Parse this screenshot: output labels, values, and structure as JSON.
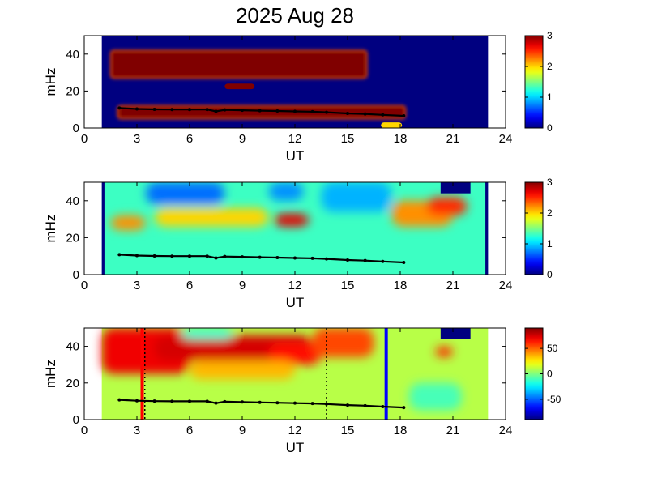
{
  "figure": {
    "title": "2025 Aug 28"
  },
  "chart_data": [
    {
      "type": "heatmap",
      "panel": "top",
      "xlabel": "UT",
      "ylabel": "mHz",
      "xlim": [
        0,
        24
      ],
      "ylim": [
        0,
        50
      ],
      "xticks": [
        0,
        3,
        6,
        9,
        12,
        15,
        18,
        21,
        24
      ],
      "yticks": [
        0,
        20,
        40
      ],
      "data_x_range": [
        1,
        23
      ],
      "colorbar": {
        "range": [
          0,
          3
        ],
        "ticks": [
          0,
          1,
          2,
          3
        ]
      },
      "background_value": 0,
      "regions": [
        {
          "label": "band",
          "ut": [
            1.5,
            16.1
          ],
          "mhz": [
            27,
            42
          ],
          "value": 3
        },
        {
          "label": "patch",
          "ut": [
            8,
            9.7
          ],
          "mhz": [
            21,
            24
          ],
          "value": 3
        },
        {
          "label": "band",
          "ut": [
            1.9,
            18.3
          ],
          "mhz": [
            5,
            12
          ],
          "value": 3
        },
        {
          "label": "patch",
          "ut": [
            16.9,
            18.1
          ],
          "mhz": [
            0,
            3
          ],
          "value": 2
        }
      ],
      "trace": {
        "color": "#000000",
        "ut": [
          2.0,
          3.0,
          4.0,
          5.0,
          6.0,
          7.0,
          7.5,
          8.0,
          9.0,
          10.0,
          11.0,
          12.0,
          13.0,
          13.8,
          15.0,
          16.0,
          17.0,
          18.2
        ],
        "mhz": [
          10.8,
          10.3,
          10.1,
          10.0,
          10.0,
          10.0,
          9.0,
          9.8,
          9.6,
          9.4,
          9.2,
          9.0,
          8.8,
          8.5,
          7.9,
          7.6,
          7.1,
          6.6
        ]
      }
    },
    {
      "type": "heatmap",
      "panel": "middle",
      "xlabel": "UT",
      "ylabel": "mHz",
      "xlim": [
        0,
        24
      ],
      "ylim": [
        0,
        50
      ],
      "xticks": [
        0,
        3,
        6,
        9,
        12,
        15,
        18,
        21,
        24
      ],
      "yticks": [
        0,
        20,
        40
      ],
      "data_x_range": [
        1,
        23
      ],
      "colorbar": {
        "range": [
          0,
          3
        ],
        "ticks": [
          0,
          1,
          2,
          3
        ]
      },
      "background_value": 1.3,
      "regions": [
        {
          "label": "low",
          "ut": [
            3.5,
            8.0
          ],
          "mhz": [
            38,
            50
          ],
          "value": 0.7
        },
        {
          "label": "low",
          "ut": [
            10.5,
            12.5
          ],
          "mhz": [
            40,
            50
          ],
          "value": 0.8
        },
        {
          "label": "low",
          "ut": [
            13.5,
            17.5
          ],
          "mhz": [
            34,
            50
          ],
          "value": 0.9
        },
        {
          "label": "high",
          "ut": [
            1.5,
            3.5
          ],
          "mhz": [
            24,
            32
          ],
          "value": 2.2
        },
        {
          "label": "high",
          "ut": [
            4.0,
            10.5
          ],
          "mhz": [
            26,
            36
          ],
          "value": 2.0
        },
        {
          "label": "high",
          "ut": [
            10.8,
            12.8
          ],
          "mhz": [
            26,
            33
          ],
          "value": 2.7
        },
        {
          "label": "high",
          "ut": [
            17.5,
            21.0
          ],
          "mhz": [
            26,
            40
          ],
          "value": 2.2
        },
        {
          "label": "high",
          "ut": [
            19.5,
            21.8
          ],
          "mhz": [
            32,
            42
          ],
          "value": 2.5
        },
        {
          "label": "patch",
          "ut": [
            20.3,
            22.0
          ],
          "mhz": [
            44,
            50
          ],
          "value": 0
        },
        {
          "label": "edge",
          "ut": [
            1.0,
            1.15
          ],
          "mhz": [
            0,
            50
          ],
          "value": 0
        },
        {
          "label": "edge",
          "ut": [
            22.85,
            23.0
          ],
          "mhz": [
            0,
            50
          ],
          "value": 0
        }
      ],
      "trace": {
        "color": "#000000",
        "ut": [
          2.0,
          3.0,
          4.0,
          5.0,
          6.0,
          7.0,
          7.5,
          8.0,
          9.0,
          10.0,
          11.0,
          12.0,
          13.0,
          13.8,
          15.0,
          16.0,
          17.0,
          18.2
        ],
        "mhz": [
          10.8,
          10.3,
          10.1,
          10.0,
          10.0,
          10.0,
          9.0,
          9.8,
          9.6,
          9.4,
          9.2,
          9.0,
          8.8,
          8.5,
          7.9,
          7.6,
          7.1,
          6.6
        ]
      }
    },
    {
      "type": "heatmap",
      "panel": "bottom",
      "xlabel": "UT",
      "ylabel": "mHz",
      "xlim": [
        0,
        24
      ],
      "ylim": [
        0,
        50
      ],
      "xticks": [
        0,
        3,
        6,
        9,
        12,
        15,
        18,
        21,
        24
      ],
      "yticks": [
        0,
        20,
        40
      ],
      "data_x_range": [
        1,
        23
      ],
      "colorbar": {
        "range": [
          -90,
          90
        ],
        "ticks": [
          50,
          0,
          -50
        ]
      },
      "background_value": 10,
      "regions": [
        {
          "label": "warm",
          "ut": [
            1.0,
            6.0
          ],
          "mhz": [
            25,
            50
          ],
          "value": 70
        },
        {
          "label": "warm",
          "ut": [
            4.0,
            13.0
          ],
          "mhz": [
            32,
            46
          ],
          "value": 75
        },
        {
          "label": "warm",
          "ut": [
            10.5,
            13.5
          ],
          "mhz": [
            30,
            42
          ],
          "value": 65
        },
        {
          "label": "warm",
          "ut": [
            13.0,
            16.5
          ],
          "mhz": [
            34,
            50
          ],
          "value": 55
        },
        {
          "label": "warm",
          "ut": [
            6.0,
            12.0
          ],
          "mhz": [
            22,
            32
          ],
          "value": 35
        },
        {
          "label": "cool",
          "ut": [
            5.5,
            8.5
          ],
          "mhz": [
            44,
            50
          ],
          "value": -15
        },
        {
          "label": "cool",
          "ut": [
            18.5,
            21.5
          ],
          "mhz": [
            5,
            20
          ],
          "value": -10
        },
        {
          "label": "warm",
          "ut": [
            20.0,
            21.0
          ],
          "mhz": [
            34,
            40
          ],
          "value": 60
        },
        {
          "label": "patch",
          "ut": [
            20.3,
            22.0
          ],
          "mhz": [
            44,
            50
          ],
          "value": -90
        }
      ],
      "markers": [
        {
          "ut": 3.3,
          "color": "#ff0000",
          "style": "solid"
        },
        {
          "ut": 3.45,
          "color": "#000000",
          "style": "dotted"
        },
        {
          "ut": 13.8,
          "color": "#000000",
          "style": "dotted"
        },
        {
          "ut": 17.2,
          "color": "#0000ff",
          "style": "solid"
        }
      ],
      "trace": {
        "color": "#000000",
        "ut": [
          2.0,
          3.0,
          4.0,
          5.0,
          6.0,
          7.0,
          7.5,
          8.0,
          9.0,
          10.0,
          11.0,
          12.0,
          13.0,
          13.8,
          15.0,
          16.0,
          17.0,
          18.2
        ],
        "mhz": [
          10.8,
          10.3,
          10.1,
          10.0,
          10.0,
          10.0,
          9.0,
          9.8,
          9.6,
          9.4,
          9.2,
          9.0,
          8.8,
          8.5,
          7.9,
          7.6,
          7.1,
          6.6
        ]
      }
    }
  ]
}
